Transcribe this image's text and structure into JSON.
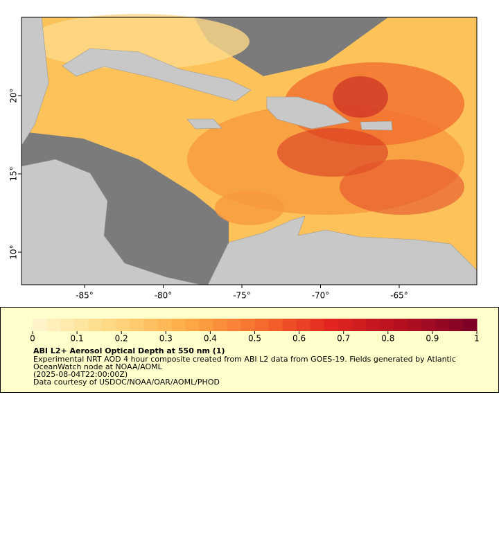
{
  "map": {
    "lon_ticks": [
      {
        "value": -85,
        "label": "-85°"
      },
      {
        "value": -80,
        "label": "-80°"
      },
      {
        "value": -75,
        "label": "-75°"
      },
      {
        "value": -70,
        "label": "-70°"
      },
      {
        "value": -65,
        "label": "-65°"
      }
    ],
    "lat_ticks": [
      {
        "value": 20,
        "label": "20°"
      },
      {
        "value": 15,
        "label": "15°"
      },
      {
        "value": 10,
        "label": "10°"
      }
    ]
  },
  "colorbar": {
    "ticks": [
      0,
      0.1,
      0.2,
      0.3,
      0.4,
      0.5,
      0.6,
      0.7,
      0.8,
      0.9,
      1
    ],
    "colormap": [
      "#fff7d0",
      "#fedb86",
      "#fdb04a",
      "#f8722e",
      "#e3261f",
      "#b40f20",
      "#7a0026"
    ]
  },
  "legend": {
    "title": "ABI L2+ Aerosol Optical Depth at 550 nm (1)",
    "lines": [
      "Experimental NRT AOD 4 hour composite created from ABI L2 data from GOES-19. Fields generated by Atlantic",
      "OceanWatch node at NOAA/AOML",
      "(2025-08-04T22:00:00Z)",
      "Data courtesy of USDOC/NOAA/OAR/AOML/PHOD"
    ]
  }
}
